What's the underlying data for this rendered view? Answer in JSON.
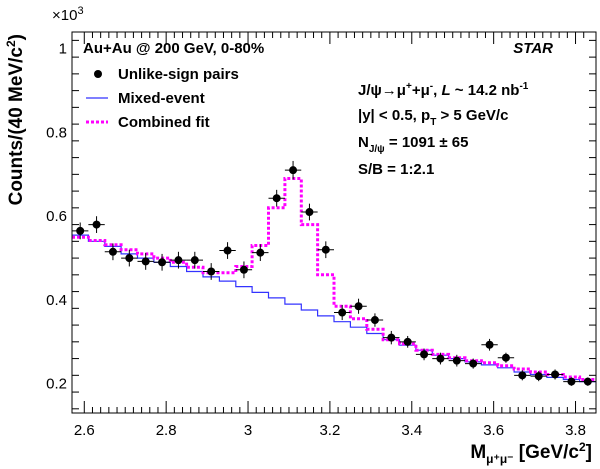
{
  "chart_data": {
    "type": "scatter",
    "collaboration": "STAR",
    "exponent_label": "×10",
    "exponent_sup": "3",
    "xlabel": {
      "main": "M",
      "sub": "μ⁺μ⁻",
      "units": " [GeV/c",
      "units_sup": "2",
      "units_close": "]"
    },
    "ylabel": {
      "main": "Counts/(40 MeV/c",
      "sup": "2",
      "close": ")"
    },
    "xlim": [
      2.57,
      3.85
    ],
    "ylim": [
      0.13,
      1.04
    ],
    "y_scale_factor": 1000,
    "x_ticks": [
      2.6,
      2.8,
      3.0,
      3.2,
      3.4,
      3.6,
      3.8
    ],
    "x_tick_labels": [
      "2.6",
      "2.8",
      "3",
      "3.2",
      "3.4",
      "3.6",
      "3.8"
    ],
    "y_ticks": [
      0.2,
      0.4,
      0.6,
      0.8,
      1.0
    ],
    "y_tick_labels": [
      "0.2",
      "0.4",
      "0.6",
      "0.8",
      "1"
    ],
    "bin_width": 0.04,
    "grid": false,
    "legend_position": "top-left",
    "legend": [
      {
        "label": "Unlike-sign pairs",
        "marker": "circle",
        "color": "#000000"
      },
      {
        "label": "Mixed-event",
        "marker": "line",
        "color": "#3333ff"
      },
      {
        "label": "Combined fit",
        "marker": "dashed",
        "color": "#ff00ff"
      }
    ],
    "header": "Au+Au @ 200 GeV, 0-80%",
    "annotations": [
      {
        "key": "decay",
        "text": "J/ψ→μ⁺+μ⁻, L ~ 14.2 nb⁻¹"
      },
      {
        "key": "cuts",
        "text": "|y| < 0.5, pT > 5 GeV/c"
      },
      {
        "key": "yield",
        "text": "NJ/ψ = 1091 ± 65"
      },
      {
        "key": "sb",
        "text": "S/B = 1:2.1"
      }
    ],
    "series": [
      {
        "name": "Unlike-sign pairs",
        "kind": "points",
        "color": "#000000",
        "x": [
          2.59,
          2.63,
          2.67,
          2.71,
          2.75,
          2.79,
          2.83,
          2.87,
          2.91,
          2.95,
          2.99,
          3.03,
          3.07,
          3.11,
          3.15,
          3.19,
          3.23,
          3.27,
          3.31,
          3.35,
          3.39,
          3.43,
          3.47,
          3.51,
          3.55,
          3.59,
          3.63,
          3.67,
          3.71,
          3.75,
          3.79,
          3.83
        ],
        "y": [
          0.565,
          0.58,
          0.515,
          0.5,
          0.492,
          0.49,
          0.495,
          0.495,
          0.468,
          0.518,
          0.472,
          0.513,
          0.643,
          0.71,
          0.61,
          0.52,
          0.37,
          0.385,
          0.352,
          0.31,
          0.3,
          0.27,
          0.26,
          0.255,
          0.248,
          0.293,
          0.262,
          0.22,
          0.218,
          0.222,
          0.205,
          0.205
        ],
        "yerr": [
          0.02,
          0.02,
          0.02,
          0.02,
          0.02,
          0.02,
          0.02,
          0.02,
          0.02,
          0.02,
          0.02,
          0.02,
          0.02,
          0.022,
          0.02,
          0.02,
          0.018,
          0.018,
          0.016,
          0.016,
          0.014,
          0.014,
          0.014,
          0.014,
          0.012,
          0.014,
          0.012,
          0.012,
          0.012,
          0.012,
          0.01,
          0.01
        ]
      },
      {
        "name": "Mixed-event",
        "kind": "step",
        "color": "#3333ff",
        "edges": [
          2.57,
          2.61,
          2.65,
          2.69,
          2.73,
          2.77,
          2.81,
          2.85,
          2.89,
          2.93,
          2.97,
          3.01,
          3.05,
          3.09,
          3.13,
          3.17,
          3.21,
          3.25,
          3.29,
          3.33,
          3.37,
          3.41,
          3.45,
          3.49,
          3.53,
          3.57,
          3.61,
          3.65,
          3.69,
          3.73,
          3.77,
          3.81,
          3.85
        ],
        "values": [
          0.555,
          0.54,
          0.528,
          0.51,
          0.5,
          0.49,
          0.48,
          0.468,
          0.455,
          0.445,
          0.432,
          0.418,
          0.405,
          0.39,
          0.376,
          0.362,
          0.348,
          0.335,
          0.32,
          0.305,
          0.292,
          0.28,
          0.268,
          0.26,
          0.252,
          0.245,
          0.238,
          0.228,
          0.222,
          0.215,
          0.21,
          0.205
        ]
      },
      {
        "name": "Combined fit",
        "kind": "step-dashed",
        "color": "#ff00ff",
        "edges": [
          2.57,
          2.61,
          2.65,
          2.69,
          2.73,
          2.77,
          2.81,
          2.85,
          2.89,
          2.93,
          2.97,
          3.01,
          3.05,
          3.09,
          3.13,
          3.17,
          3.21,
          3.25,
          3.29,
          3.33,
          3.37,
          3.41,
          3.45,
          3.49,
          3.53,
          3.57,
          3.61,
          3.65,
          3.69,
          3.73,
          3.77,
          3.81,
          3.85
        ],
        "values": [
          0.55,
          0.542,
          0.532,
          0.52,
          0.51,
          0.5,
          0.49,
          0.478,
          0.465,
          0.465,
          0.48,
          0.53,
          0.62,
          0.69,
          0.58,
          0.46,
          0.385,
          0.355,
          0.33,
          0.305,
          0.295,
          0.28,
          0.27,
          0.262,
          0.255,
          0.25,
          0.243,
          0.235,
          0.228,
          0.222,
          0.216,
          0.21
        ]
      }
    ]
  }
}
